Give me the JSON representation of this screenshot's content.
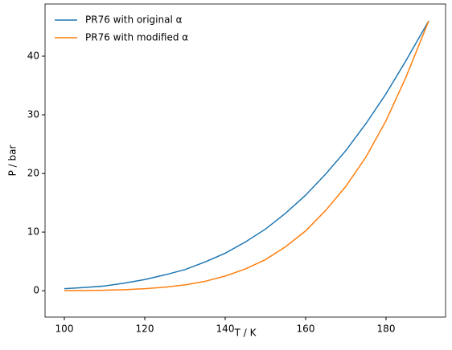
{
  "chart_data": {
    "type": "line",
    "xlabel": "T / K",
    "ylabel": "P / bar",
    "x": [
      100,
      105,
      110,
      115,
      120,
      125,
      130,
      135,
      140,
      145,
      150,
      155,
      160,
      165,
      170,
      175,
      180,
      185,
      190.6
    ],
    "series": [
      {
        "name": "PR76 with original α",
        "color": "#1f77b4",
        "values": [
          0.35,
          0.55,
          0.8,
          1.3,
          1.9,
          2.7,
          3.6,
          4.9,
          6.4,
          8.3,
          10.5,
          13.2,
          16.3,
          19.9,
          23.9,
          28.5,
          33.6,
          39.3,
          46
        ]
      },
      {
        "name": "PR76 with modified α",
        "color": "#ff7f0e",
        "values": [
          0.01,
          0.03,
          0.08,
          0.18,
          0.35,
          0.6,
          1.0,
          1.6,
          2.5,
          3.7,
          5.3,
          7.5,
          10.2,
          13.7,
          17.8,
          22.8,
          29,
          36.5,
          46
        ]
      }
    ],
    "xlim": [
      95.2,
      194.8
    ],
    "ylim": [
      -4.5,
      48.9
    ],
    "xticks": [
      100,
      120,
      140,
      160,
      180
    ],
    "yticks": [
      0,
      10,
      20,
      30,
      40
    ],
    "legend": "upper-left",
    "grid": false
  }
}
